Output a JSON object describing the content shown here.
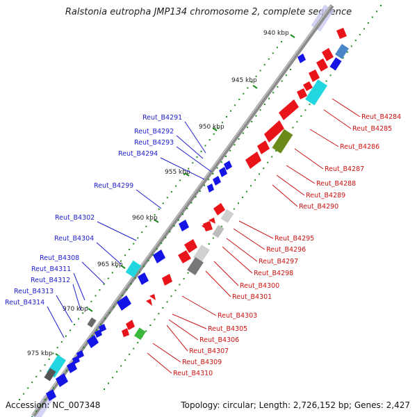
{
  "title": "Ralstonia eutropha JMP134 chromosome 2, complete sequence",
  "footer": {
    "accession": "Accession: NC_007348",
    "summary": "Topology: circular; Length: 2,726,152 bp; Genes: 2,427"
  },
  "ticks": [
    "940 kbp",
    "945 kbp",
    "950 kbp",
    "955 kbp",
    "960 kbp",
    "965 kbp",
    "970 kbp",
    "975 kbp"
  ],
  "left_labels": [
    "Reut_B4291",
    "Reut_B4292",
    "Reut_B4293",
    "Reut_B4294",
    "Reut_B4299",
    "Reut_B4302",
    "Reut_B4304",
    "Reut_B4308",
    "Reut_B4311",
    "Reut_B4312",
    "Reut_B4313",
    "Reut_B4314"
  ],
  "right_labels": [
    "Reut_B4284",
    "Reut_B4285",
    "Reut_B4286",
    "Reut_B4287",
    "Reut_B4288",
    "Reut_B4289",
    "Reut_B4290",
    "Reut_B4295",
    "Reut_B4296",
    "Reut_B4297",
    "Reut_B4298",
    "Reut_B4300",
    "Reut_B4301",
    "Reut_B4303",
    "Reut_B4305",
    "Reut_B4306",
    "Reut_B4307",
    "Reut_B4309",
    "Reut_B4310"
  ],
  "colors": {
    "left_label": "#1c1ccc",
    "right_label": "#cc1111",
    "forward_gene": "#e8141a",
    "reverse_gene": "#1414e6",
    "cyan_gene": "#22d6e0",
    "gray_gene": "#8a8a8a",
    "olive_gene": "#6b8a1a",
    "green_gene": "#3bb83b",
    "steel_gene": "#4a86c8",
    "backbone": "#8c8c8c",
    "dots": "#1b8c1b"
  }
}
